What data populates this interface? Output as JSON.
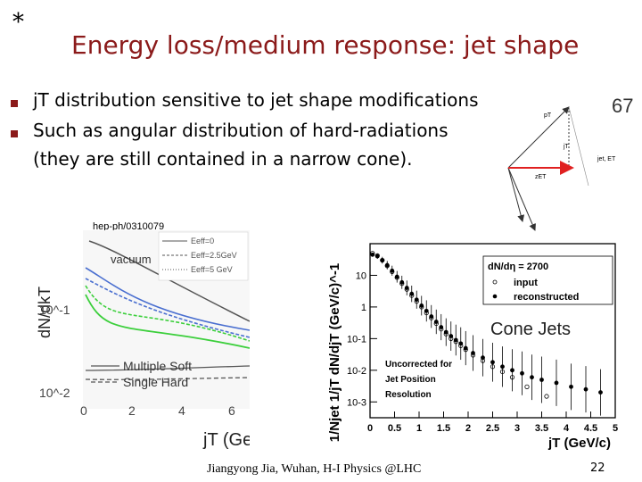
{
  "slide": {
    "star": "*",
    "title": "Energy loss/medium response: jet shape",
    "bullets": [
      "jT distribution sensitive to jet shape modifications",
      "Such as angular distribution of hard-radiations",
      "(they are still contained in a narrow cone)."
    ],
    "footer": "Jiangyong Jia, Wuhan, H-I Physics @LHC",
    "page_number": "22",
    "accent_color": "#8b1a1a"
  },
  "diagram": {
    "labels": [
      "pT",
      "jT",
      "jet, ET",
      "zET"
    ],
    "cutoff_text": "67"
  },
  "chart_data": [
    {
      "type": "line",
      "source": "hep-ph/0310079",
      "ylabel": "dN/dkT",
      "xlabel": "jT (GeV",
      "xlim": [
        0,
        6
      ],
      "x_ticks": [
        "0",
        "2",
        "4",
        "6"
      ],
      "y_ticks": [
        "10^-1",
        "10^-2"
      ],
      "legend_top": [
        "Eeff=0",
        "Eeff=2.5GeV",
        "Eeff=5 GeV"
      ],
      "legend_bottom": [
        "Multiple Soft",
        "Single Hard"
      ],
      "annotation": "vacuum"
    },
    {
      "type": "scatter",
      "title": "Cone Jets",
      "xlabel": "jT (GeV/c)",
      "ylabel": "1/Njet 1/jT dN/djT (GeV/c)^-1",
      "xlim": [
        0,
        5
      ],
      "ylim_log10": [
        -3.5,
        2
      ],
      "x_ticks": [
        "0",
        "0.5",
        "1",
        "1.5",
        "2",
        "2.5",
        "3",
        "3.5",
        "4",
        "4.5",
        "5"
      ],
      "y_ticks": [
        "10",
        "1",
        "10-1",
        "10-2",
        "10-3"
      ],
      "legend_title": "dN/dη = 2700",
      "legend": [
        "input",
        "reconstructed"
      ],
      "annotation": [
        "Uncorrected for",
        "Jet Position",
        "Resolution"
      ],
      "series": [
        {
          "name": "input",
          "x": [
            0.05,
            0.15,
            0.25,
            0.35,
            0.45,
            0.55,
            0.65,
            0.75,
            0.85,
            0.95,
            1.05,
            1.15,
            1.25,
            1.35,
            1.45,
            1.55,
            1.65,
            1.75,
            1.85,
            1.95,
            2.1,
            2.3,
            2.5,
            2.7,
            2.9,
            3.2,
            3.6
          ],
          "y": [
            50,
            42,
            30,
            20,
            13,
            8.5,
            5.5,
            3.6,
            2.3,
            1.5,
            1.0,
            0.65,
            0.45,
            0.3,
            0.2,
            0.14,
            0.1,
            0.08,
            0.06,
            0.045,
            0.03,
            0.02,
            0.013,
            0.009,
            0.006,
            0.003,
            0.0015
          ]
        },
        {
          "name": "reconstructed",
          "x": [
            0.05,
            0.15,
            0.25,
            0.35,
            0.45,
            0.55,
            0.65,
            0.75,
            0.85,
            0.95,
            1.05,
            1.15,
            1.25,
            1.35,
            1.45,
            1.55,
            1.65,
            1.75,
            1.85,
            1.95,
            2.1,
            2.3,
            2.5,
            2.7,
            2.9,
            3.1,
            3.3,
            3.5,
            3.8,
            4.1,
            4.4,
            4.7
          ],
          "y": [
            45,
            40,
            30,
            21,
            14,
            9,
            6,
            4,
            2.6,
            1.7,
            1.1,
            0.75,
            0.5,
            0.34,
            0.23,
            0.16,
            0.12,
            0.09,
            0.07,
            0.05,
            0.035,
            0.025,
            0.018,
            0.013,
            0.01,
            0.008,
            0.006,
            0.005,
            0.004,
            0.003,
            0.0025,
            0.002
          ]
        }
      ]
    }
  ]
}
